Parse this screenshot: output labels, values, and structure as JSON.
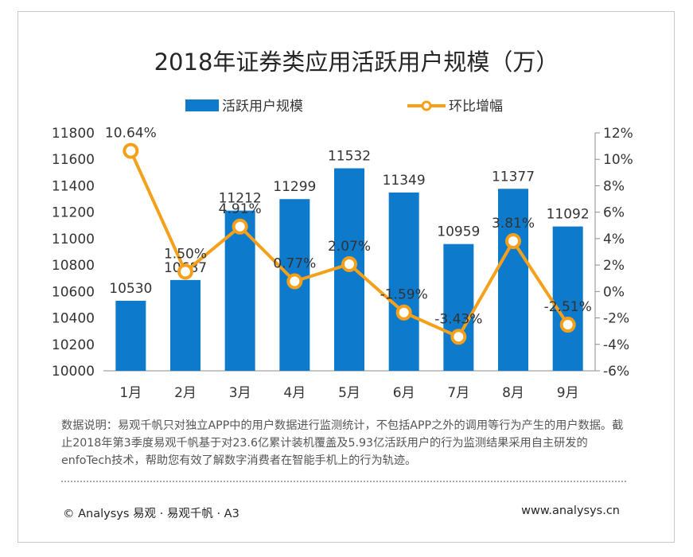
{
  "chart_data": {
    "type": "bar",
    "title": "2018年证券类应用活跃用户规模（万）",
    "categories": [
      "1月",
      "2月",
      "3月",
      "4月",
      "5月",
      "6月",
      "7月",
      "8月",
      "9月"
    ],
    "series": [
      {
        "name": "活跃用户规模",
        "type": "bar",
        "axis": "left",
        "color": "#0e7acb",
        "values": [
          10530,
          10687,
          11212,
          11299,
          11532,
          11349,
          10959,
          11377,
          11092
        ],
        "labels": [
          "10530",
          "10687",
          "11212",
          "11299",
          "11532",
          "11349",
          "10959",
          "11377",
          "11092"
        ]
      },
      {
        "name": "环比增幅",
        "type": "line",
        "axis": "right",
        "color": "#f5a01a",
        "values": [
          10.64,
          1.5,
          4.91,
          0.77,
          2.07,
          -1.59,
          -3.43,
          3.81,
          -2.51
        ],
        "labels": [
          "10.64%",
          "1.50%",
          "4.91%",
          "0.77%",
          "2.07%",
          "-1.59%",
          "-3.43%",
          "3.81%",
          "-2.51%"
        ]
      }
    ],
    "y_left": {
      "range": [
        10000,
        11800
      ],
      "ticks": [
        "10000",
        "10200",
        "10400",
        "10600",
        "10800",
        "11000",
        "11200",
        "11400",
        "11600",
        "11800"
      ]
    },
    "y_right": {
      "range": [
        -6,
        12
      ],
      "ticks": [
        "-6%",
        "-4%",
        "-2%",
        "0%",
        "2%",
        "4%",
        "6%",
        "8%",
        "10%",
        "12%"
      ]
    },
    "grid": false,
    "legend_position": "top"
  },
  "footer": {
    "note": "数据说明：易观千帆只对独立APP中的用户数据进行监测统计，不包括APP之外的调用等行为产生的用户数据。截止2018年第3季度易观千帆基于对23.6亿累计装机覆盖及5.93亿活跃用户的行为监测结果采用自主研发的enfoTech技术，帮助您有效了解数字消费者在智能手机上的行为轨迹。",
    "copyright": "© Analysys 易观 · 易观千帆 · A3",
    "website": "www.analysys.cn"
  }
}
